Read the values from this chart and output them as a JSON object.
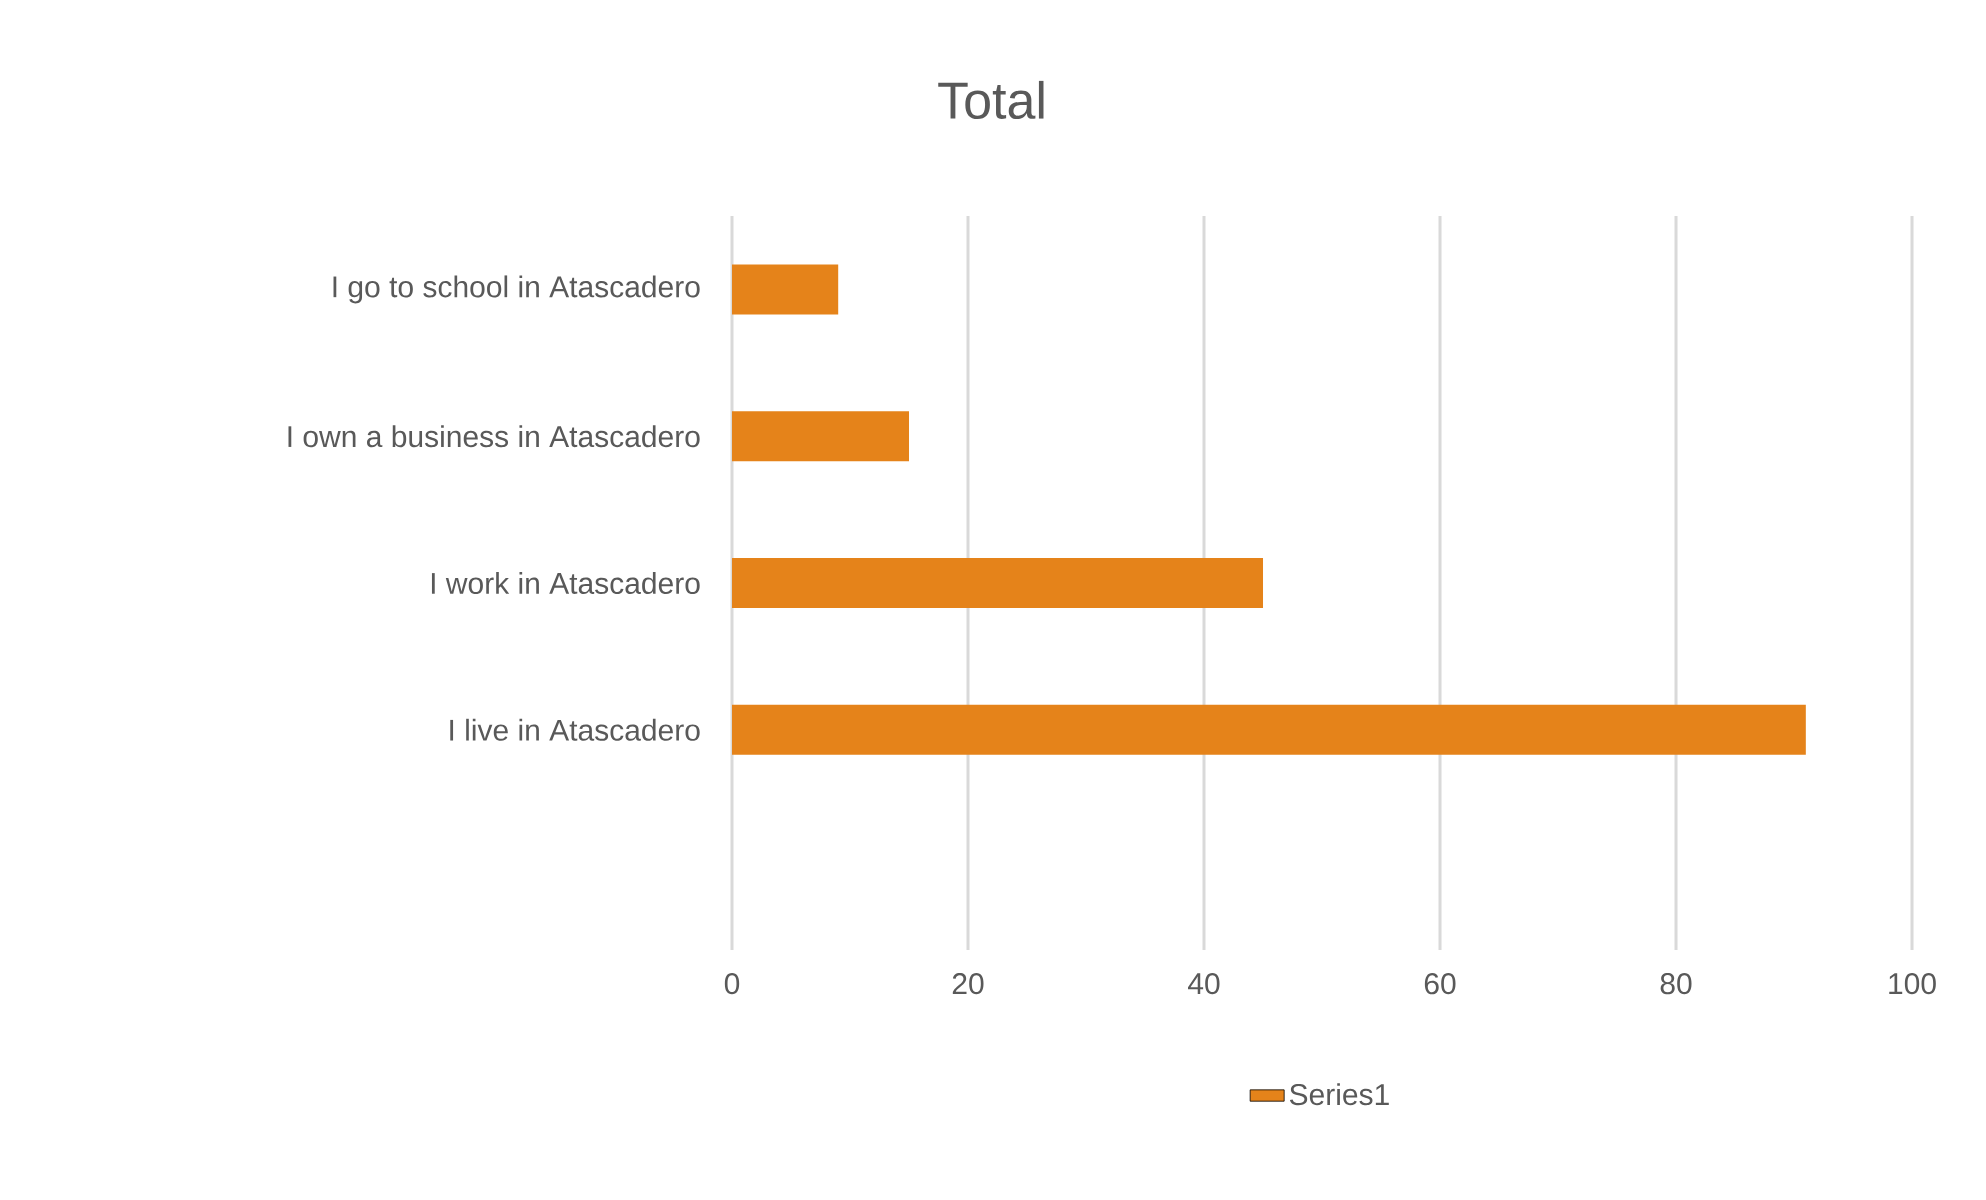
{
  "chart_data": {
    "type": "bar",
    "orientation": "horizontal",
    "title": "Total",
    "categories": [
      "I go to school in Atascadero",
      "I own a business in Atascadero",
      "I work in Atascadero",
      "I live in Atascadero",
      null
    ],
    "series": [
      {
        "name": "Series1",
        "color": "#e5831a",
        "values": [
          9,
          15,
          45,
          91,
          null
        ]
      }
    ],
    "xlim": [
      0,
      100
    ],
    "xticks": [
      0,
      20,
      40,
      60,
      80,
      100
    ],
    "grid": "x",
    "legend": "bottom"
  }
}
